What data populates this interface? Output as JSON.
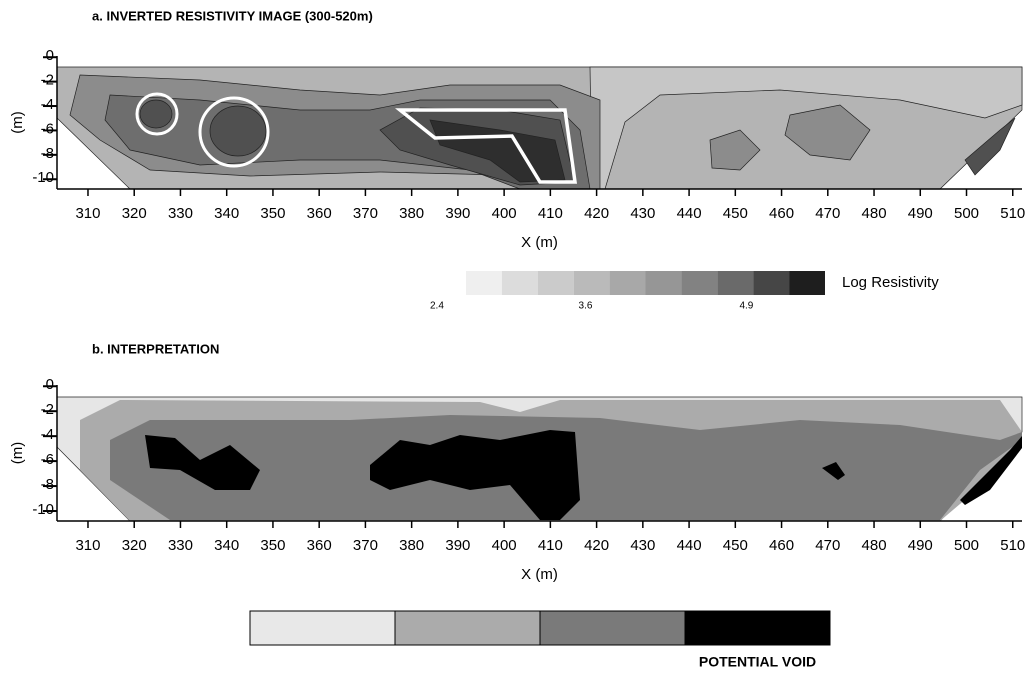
{
  "chart_data": [
    {
      "type": "contour",
      "title": "a. INVERTED RESISTIVITY IMAGE (300-520m)",
      "x_label": "X (m)",
      "y_label": "(m)",
      "xlim": [
        303.3,
        512
      ],
      "xticks": [
        310,
        320,
        330,
        340,
        350,
        360,
        370,
        380,
        390,
        400,
        410,
        420,
        430,
        440,
        450,
        460,
        470,
        480,
        490,
        500,
        510
      ],
      "ylim": [
        -10.8,
        0.1
      ],
      "yticks": [
        0,
        -2,
        -4,
        -6,
        -8,
        -10
      ],
      "colorbar": {
        "label": "Log Resistivity",
        "lim": [
          2.15,
          5.05
        ],
        "ticks": [
          2.4,
          3.6,
          4.9
        ],
        "colors": [
          "#efefef",
          "#dcdcdc",
          "#cbcbcb",
          "#bababa",
          "#a8a8a8",
          "#969696",
          "#828282",
          "#6a6a6a",
          "#464646",
          "#1e1e1e"
        ]
      }
    },
    {
      "type": "contour",
      "title": "b.  INTERPRETATION",
      "x_label": "X (m)",
      "y_label": "(m)",
      "xlim": [
        303.3,
        512
      ],
      "xticks": [
        310,
        320,
        330,
        340,
        350,
        360,
        370,
        380,
        390,
        400,
        410,
        420,
        430,
        440,
        450,
        460,
        470,
        480,
        490,
        500,
        510
      ],
      "ylim": [
        -10.8,
        0.1
      ],
      "yticks": [
        0,
        -2,
        -4,
        -6,
        -8,
        -10
      ],
      "legend": {
        "colors": [
          "#e8e8e8",
          "#ababab",
          "#7a7a7a",
          "#000000"
        ],
        "label": "POTENTIAL VOID"
      }
    }
  ]
}
